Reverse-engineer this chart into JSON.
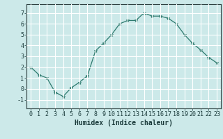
{
  "x": [
    0,
    1,
    2,
    3,
    4,
    5,
    6,
    7,
    8,
    9,
    10,
    11,
    12,
    13,
    14,
    15,
    16,
    17,
    18,
    19,
    20,
    21,
    22,
    23
  ],
  "y": [
    2.0,
    1.3,
    1.0,
    -0.3,
    -0.7,
    0.1,
    0.6,
    1.2,
    3.5,
    4.2,
    5.0,
    6.0,
    6.3,
    6.3,
    7.0,
    6.7,
    6.7,
    6.5,
    6.0,
    5.0,
    4.2,
    3.6,
    2.9,
    2.4
  ],
  "line_color": "#2d7a6e",
  "marker": "*",
  "marker_size": 3.5,
  "bg_color": "#cce9e9",
  "grid_color": "#ffffff",
  "xlabel": "Humidex (Indice chaleur)",
  "xlim": [
    -0.5,
    23.5
  ],
  "ylim": [
    -1.8,
    7.8
  ],
  "yticks": [
    -1,
    0,
    1,
    2,
    3,
    4,
    5,
    6,
    7
  ],
  "xticks": [
    0,
    1,
    2,
    3,
    4,
    5,
    6,
    7,
    8,
    9,
    10,
    11,
    12,
    13,
    14,
    15,
    16,
    17,
    18,
    19,
    20,
    21,
    22,
    23
  ],
  "font_size_label": 7,
  "font_size_tick": 6
}
